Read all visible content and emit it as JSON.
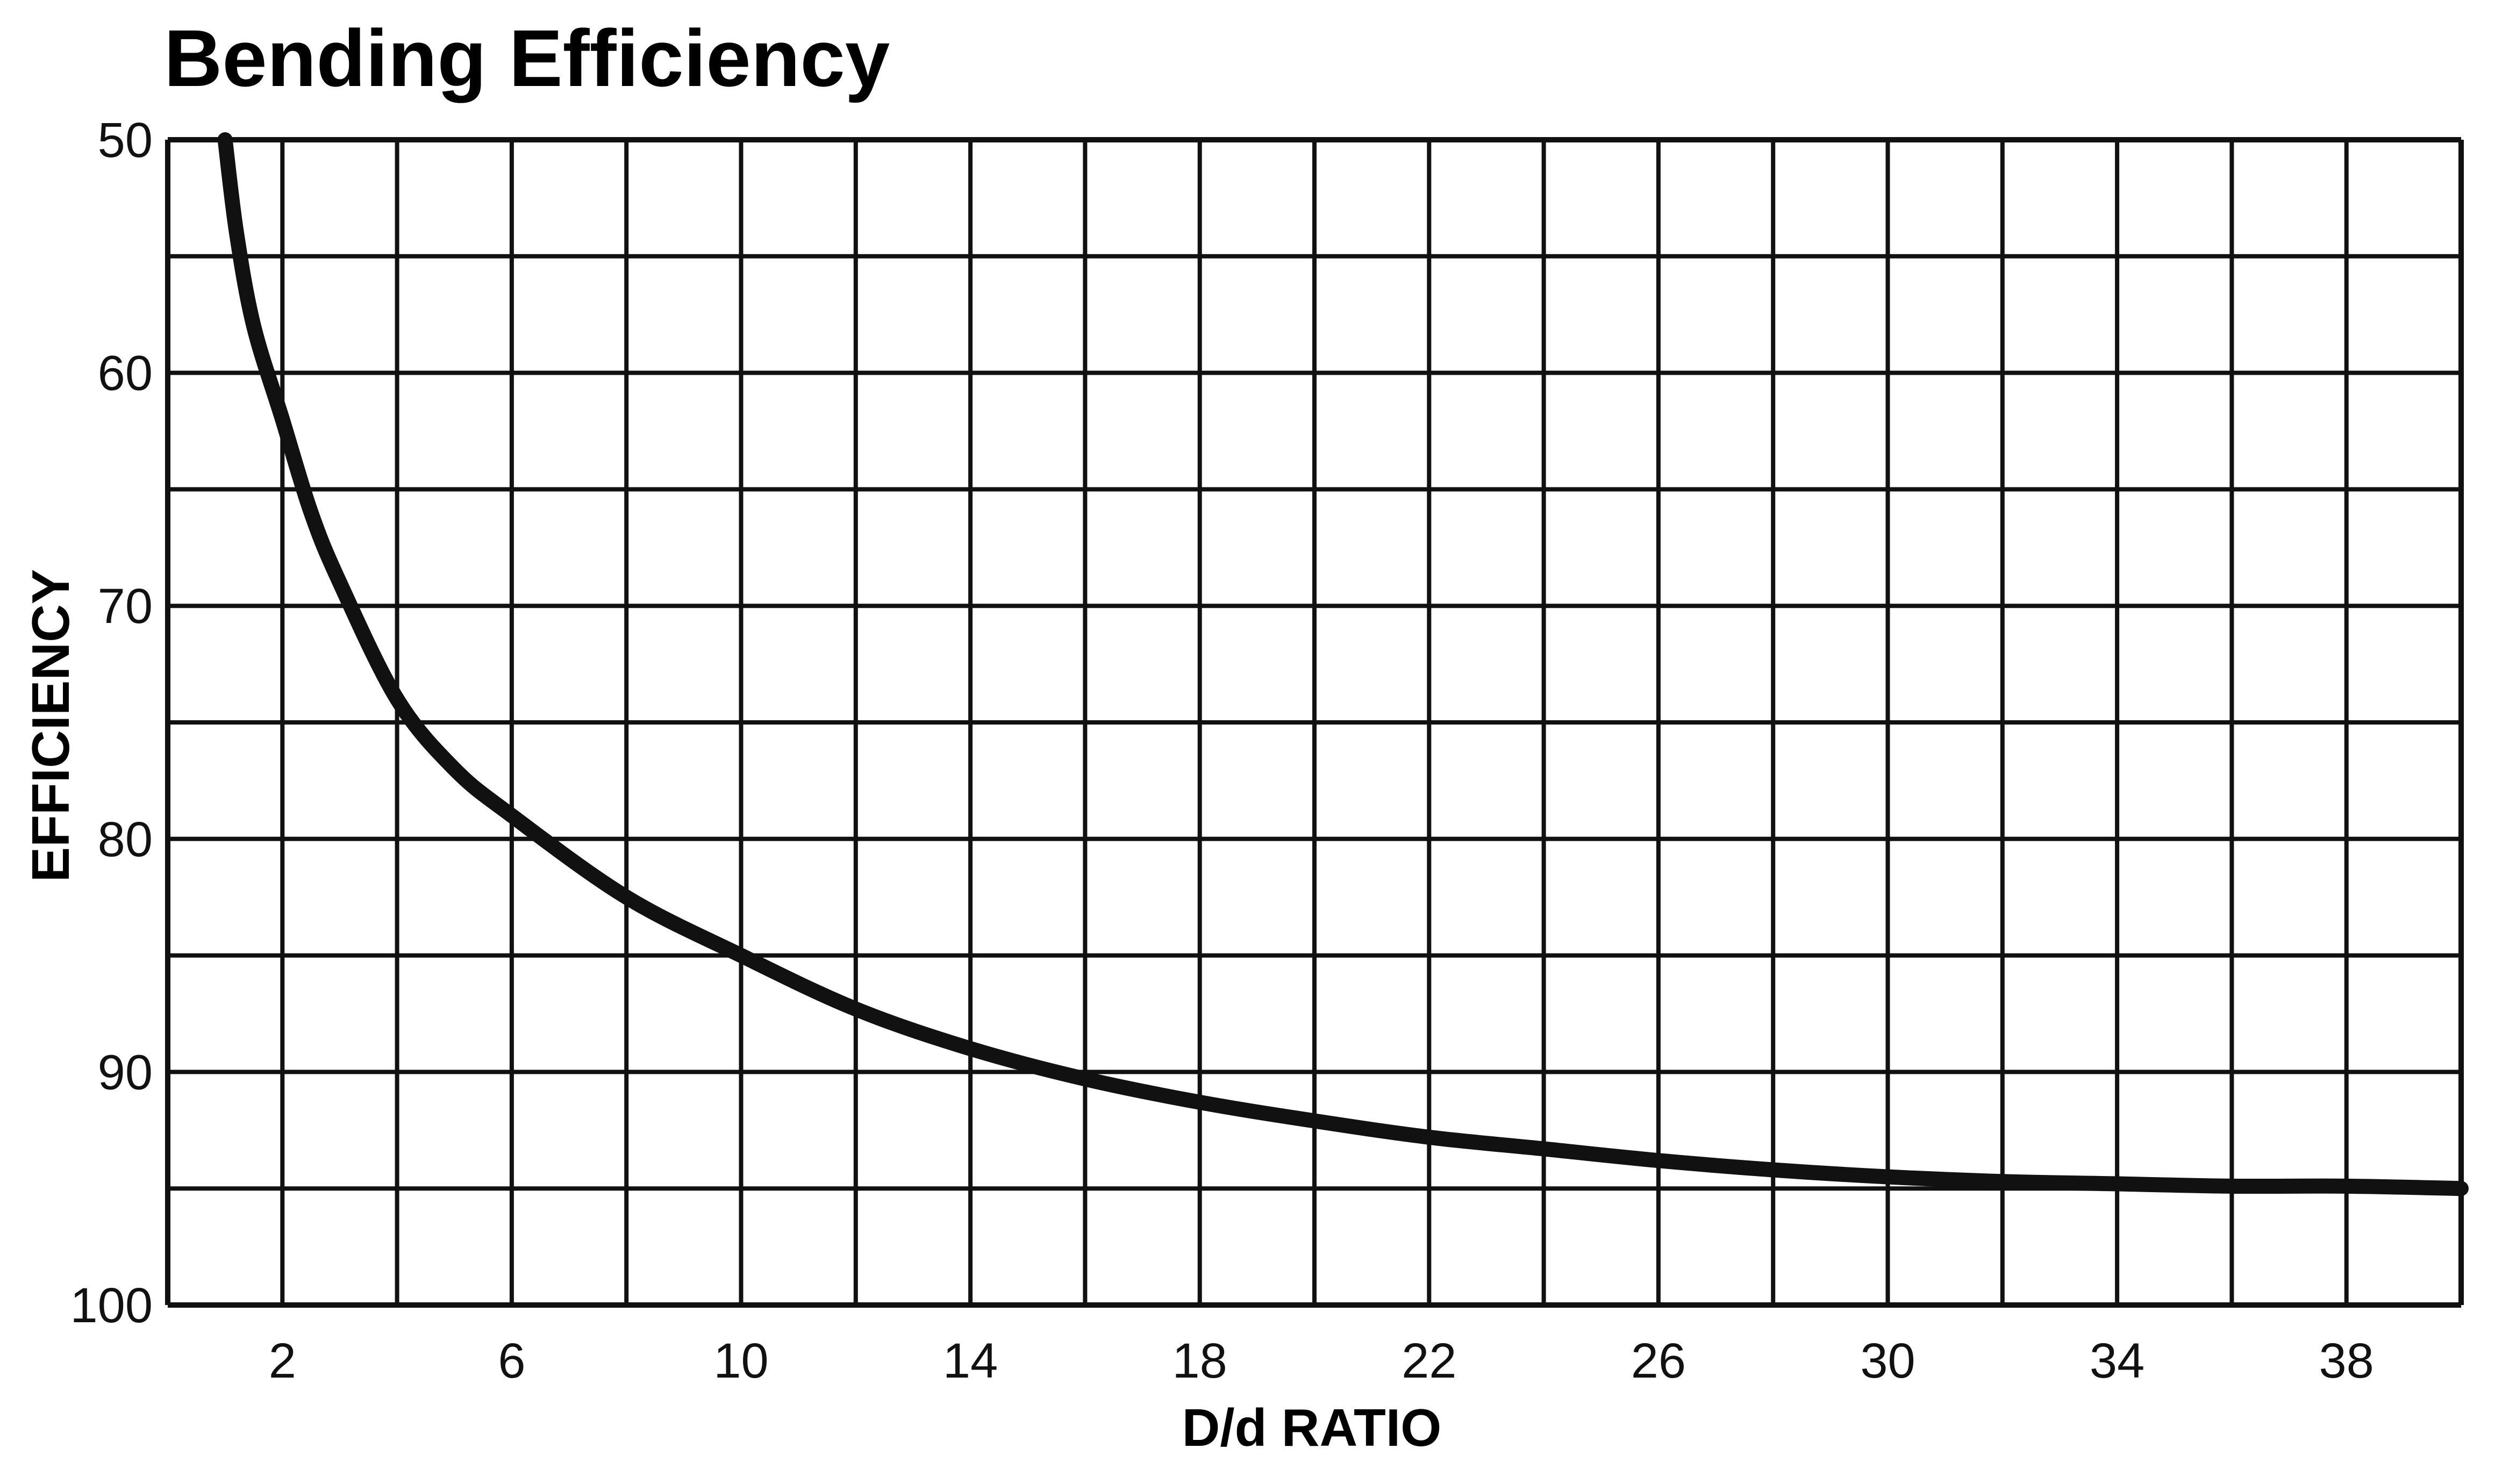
{
  "chart_data": {
    "type": "line",
    "title": "Bending Efficiency",
    "xlabel": "D/d RATIO",
    "ylabel": "EFFICIENCY",
    "xlim": [
      0,
      40
    ],
    "ylim": [
      100,
      50
    ],
    "y_inverted": true,
    "x_ticks": [
      "2",
      "6",
      "10",
      "14",
      "18",
      "22",
      "26",
      "30",
      "34",
      "38"
    ],
    "y_ticks": [
      "50",
      "60",
      "70",
      "80",
      "90",
      "100"
    ],
    "grid": true,
    "legend": "none",
    "series": [
      {
        "x": [
          1,
          1.2,
          1.5,
          2,
          2.5,
          3,
          4,
          5,
          6,
          8,
          10,
          12,
          14,
          16,
          18,
          20,
          22,
          24,
          26,
          28,
          30,
          32,
          34,
          36,
          38,
          40
        ],
        "y": [
          50,
          54,
          58,
          62,
          66,
          69,
          74,
          77,
          79,
          82.5,
          85,
          87.3,
          89,
          90.3,
          91.3,
          92.1,
          92.8,
          93.3,
          93.8,
          94.2,
          94.5,
          94.7,
          94.8,
          94.9,
          94.9,
          95
        ]
      }
    ]
  },
  "colors": {
    "ink": "#111111",
    "background": "#ffffff"
  }
}
